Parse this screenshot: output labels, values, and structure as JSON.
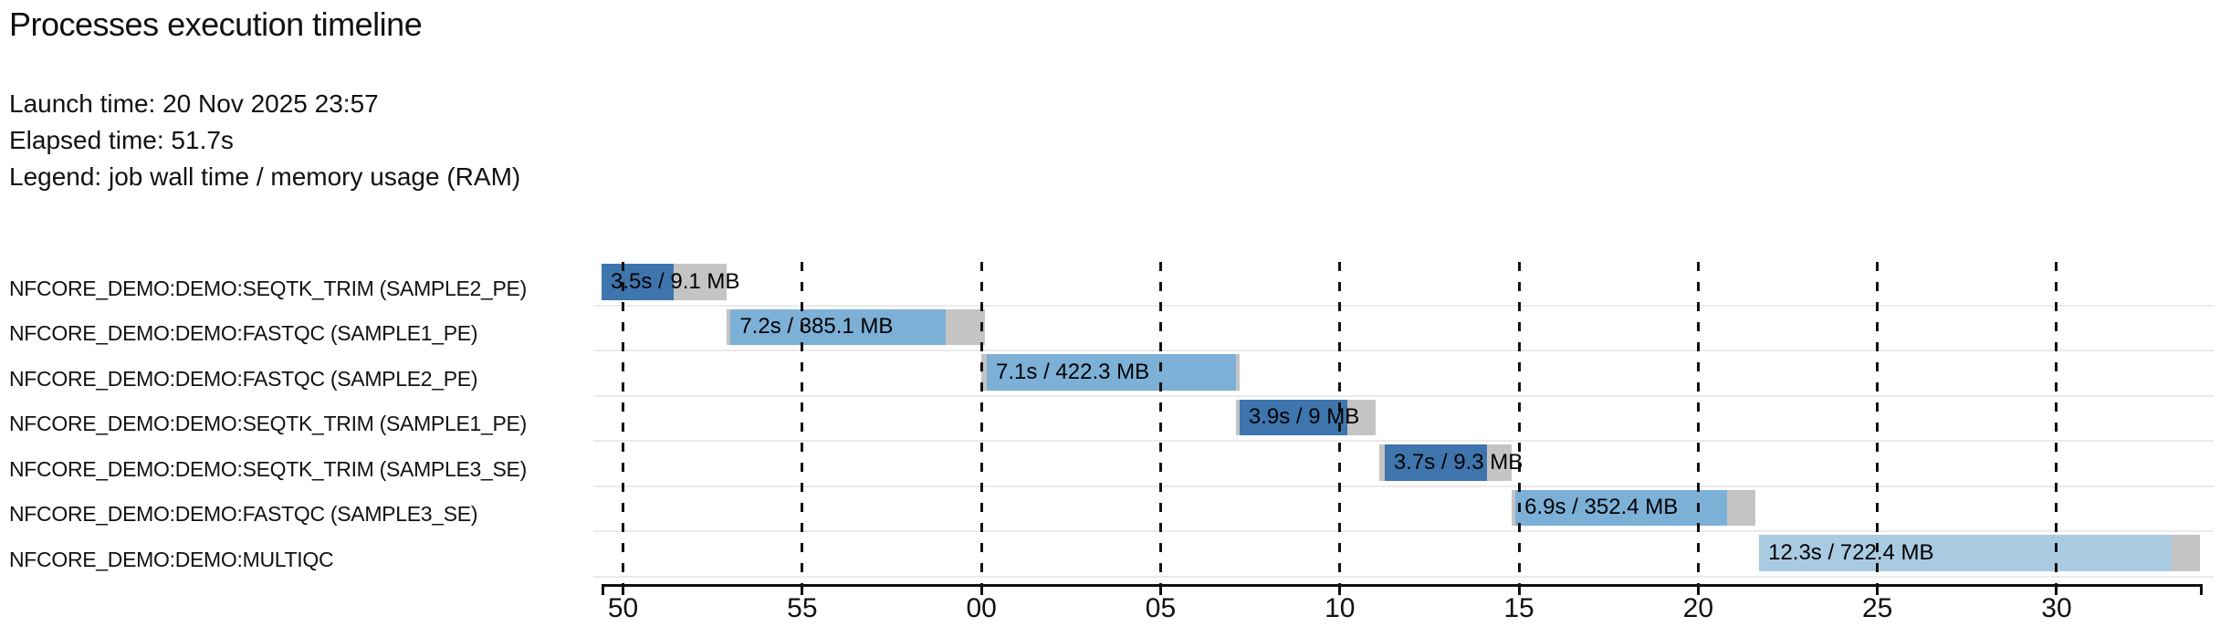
{
  "header": {
    "title": "Processes execution timeline",
    "launch_line": "Launch time: 20 Nov 2025 23:57",
    "elapsed_line": "Elapsed time: 51.7s",
    "legend_line": "Legend: job wall time / memory usage (RAM)"
  },
  "colors": {
    "seqtk_trim_bar": "#3e75ad",
    "fastqc_bar": "#7cb0d7",
    "multiqc_bar": "#a9cbe2",
    "overhead_gray": "#c4c4c4",
    "grid_dash": "#111111",
    "row_separator": "#ebebeb",
    "text": "#111111"
  },
  "chart_data": {
    "type": "bar",
    "variant": "gantt-process-timeline",
    "title": "Processes execution timeline",
    "x_axis": {
      "unit": "seconds (clock 23:57:xx → 23:58:xx)",
      "domain_s": [
        49.4,
        94.0
      ],
      "ticks": [
        {
          "t": 50,
          "label": "50"
        },
        {
          "t": 55,
          "label": "55"
        },
        {
          "t": 60,
          "label": "00"
        },
        {
          "t": 65,
          "label": "05"
        },
        {
          "t": 70,
          "label": "10"
        },
        {
          "t": 75,
          "label": "15"
        },
        {
          "t": 80,
          "label": "20"
        },
        {
          "t": 85,
          "label": "25"
        },
        {
          "t": 90,
          "label": "30"
        }
      ]
    },
    "tasks": [
      {
        "process": "NFCORE_DEMO:DEMO:SEQTK_TRIM (SAMPLE2_PE)",
        "bar_label": "3.5s / 9.1 MB",
        "wall_time": "3.5s",
        "memory": "9.1 MB",
        "start_s": 49.4,
        "run_start_s": 49.4,
        "run_end_s": 51.4,
        "end_s": 52.9,
        "color": "#3e75ad"
      },
      {
        "process": "NFCORE_DEMO:DEMO:FASTQC (SAMPLE1_PE)",
        "bar_label": "7.2s / 385.1 MB",
        "wall_time": "7.2s",
        "memory": "385.1 MB",
        "start_s": 52.9,
        "run_start_s": 53.0,
        "run_end_s": 59.0,
        "end_s": 60.1,
        "color": "#7cb0d7"
      },
      {
        "process": "NFCORE_DEMO:DEMO:FASTQC (SAMPLE2_PE)",
        "bar_label": "7.1s / 422.3 MB",
        "wall_time": "7.1s",
        "memory": "422.3 MB",
        "start_s": 60.0,
        "run_start_s": 60.15,
        "run_end_s": 67.1,
        "end_s": 67.2,
        "color": "#7cb0d7"
      },
      {
        "process": "NFCORE_DEMO:DEMO:SEQTK_TRIM (SAMPLE1_PE)",
        "bar_label": "3.9s / 9 MB",
        "wall_time": "3.9s",
        "memory": "9 MB",
        "start_s": 67.1,
        "run_start_s": 67.2,
        "run_end_s": 70.2,
        "end_s": 71.0,
        "color": "#3e75ad"
      },
      {
        "process": "NFCORE_DEMO:DEMO:SEQTK_TRIM (SAMPLE3_SE)",
        "bar_label": "3.7s / 9.3 MB",
        "wall_time": "3.7s",
        "memory": "9.3 MB",
        "start_s": 71.1,
        "run_start_s": 71.25,
        "run_end_s": 74.1,
        "end_s": 74.8,
        "color": "#3e75ad"
      },
      {
        "process": "NFCORE_DEMO:DEMO:FASTQC (SAMPLE3_SE)",
        "bar_label": "6.9s / 352.4 MB",
        "wall_time": "6.9s",
        "memory": "352.4 MB",
        "start_s": 74.8,
        "run_start_s": 74.9,
        "run_end_s": 80.8,
        "end_s": 81.6,
        "color": "#7cb0d7"
      },
      {
        "process": "NFCORE_DEMO:DEMO:MULTIQC",
        "bar_label": "12.3s / 722.4 MB",
        "wall_time": "12.3s",
        "memory": "722.4 MB",
        "start_s": 81.7,
        "run_start_s": 81.7,
        "run_end_s": 93.2,
        "end_s": 94.0,
        "color": "#a9cbe2"
      }
    ]
  }
}
